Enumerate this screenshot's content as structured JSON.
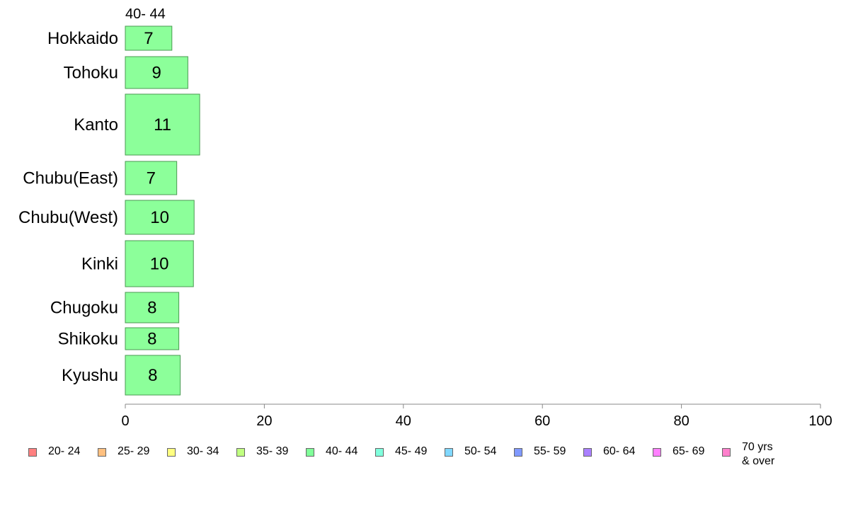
{
  "chart_data": {
    "type": "bar",
    "orientation": "horizontal",
    "series_label": "40- 44",
    "categories": [
      "Hokkaido",
      "Tohoku",
      "Kanto",
      "Chubu(East)",
      "Chubu(West)",
      "Kinki",
      "Chugoku",
      "Shikoku",
      "Kyushu"
    ],
    "values": [
      6.7,
      9.0,
      10.7,
      7.4,
      9.9,
      9.8,
      7.7,
      7.7,
      7.9
    ],
    "value_labels": [
      "7",
      "9",
      "11",
      "7",
      "10",
      "10",
      "8",
      "8",
      "8"
    ],
    "xlim": [
      0,
      100
    ],
    "xticks": [
      "0",
      "20",
      "40",
      "60",
      "80",
      "100"
    ],
    "bar_color": "#8cff9a",
    "bar_border": "#4a9a52",
    "grid": false,
    "legend_position": "bottom",
    "legend": [
      {
        "label": "20- 24",
        "color": "#ff8080"
      },
      {
        "label": "25- 29",
        "color": "#ffc080"
      },
      {
        "label": "30- 34",
        "color": "#ffff80"
      },
      {
        "label": "35- 39",
        "color": "#c0ff80"
      },
      {
        "label": "40- 44",
        "color": "#80ff99"
      },
      {
        "label": "45- 49",
        "color": "#80ffdd"
      },
      {
        "label": "50- 54",
        "color": "#80d8ff"
      },
      {
        "label": "55- 59",
        "color": "#8099ff"
      },
      {
        "label": "60- 64",
        "color": "#aa80ff"
      },
      {
        "label": "65- 69",
        "color": "#ff80ff"
      },
      {
        "label": "70 yrs\n& over",
        "color": "#ff80cc"
      }
    ]
  }
}
